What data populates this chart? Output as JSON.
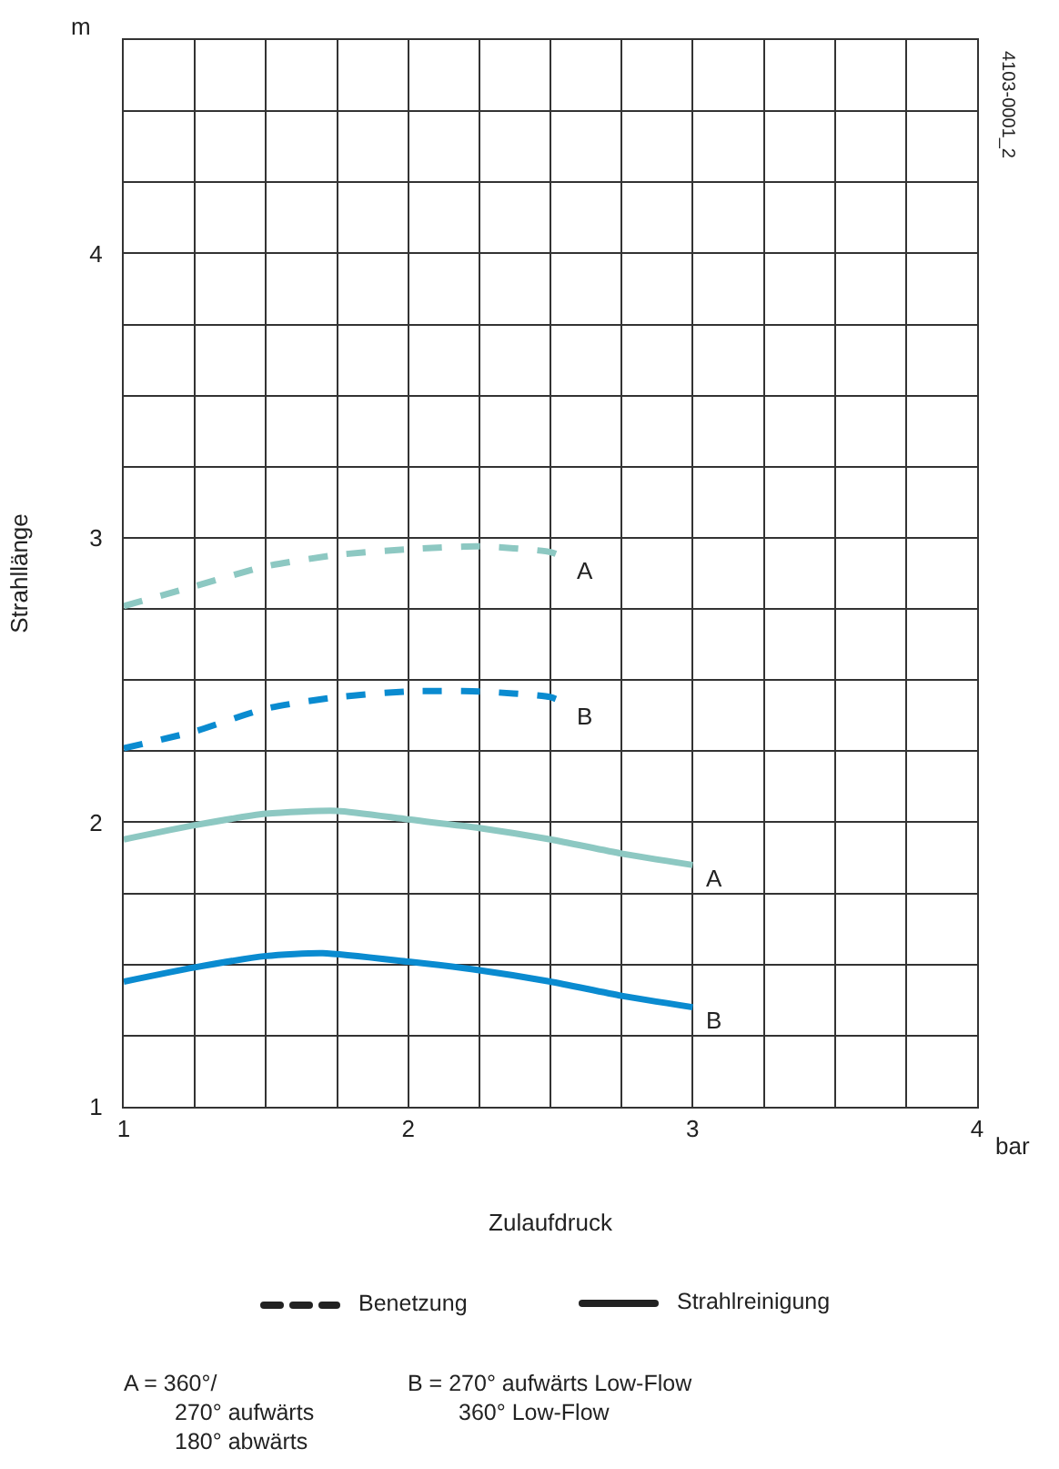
{
  "chart_data": {
    "type": "line",
    "xlabel": "Zulaufdruck",
    "ylabel": "Strahllänge",
    "xlim": [
      1,
      4
    ],
    "ylim": [
      1,
      4.75
    ],
    "xticks": [
      1,
      {
        "value": 1.25,
        "label": null
      },
      {
        "value": 1.5,
        "label": null
      },
      {
        "value": 1.75,
        "label": null
      },
      2,
      {
        "value": 2.25,
        "label": null
      },
      {
        "value": 2.5,
        "label": null
      },
      {
        "value": 2.75,
        "label": null
      },
      3,
      {
        "value": 3.25,
        "label": null
      },
      {
        "value": 3.5,
        "label": null
      },
      {
        "value": 3.75,
        "label": null
      },
      4
    ],
    "yticks": [
      1,
      {
        "value": 1.25,
        "label": null
      },
      {
        "value": 1.5,
        "label": null
      },
      {
        "value": 1.75,
        "label": null
      },
      2,
      {
        "value": 2.25,
        "label": null
      },
      {
        "value": 2.5,
        "label": null
      },
      {
        "value": 2.75,
        "label": null
      },
      3,
      {
        "value": 3.25,
        "label": null
      },
      {
        "value": 3.5,
        "label": null
      },
      {
        "value": 3.75,
        "label": null
      },
      4,
      {
        "value": 4.25,
        "label": null
      },
      {
        "value": 4.5,
        "label": null
      },
      {
        "value": 4.75,
        "label": null
      }
    ],
    "grid": true,
    "series": [
      {
        "name": "A",
        "color": "#8dc8c2",
        "line_style": "dashed",
        "x": [
          1,
          1.25,
          1.5,
          1.75,
          2,
          2.25,
          2.5,
          2.55
        ],
        "values": [
          2.76,
          2.83,
          2.9,
          2.94,
          2.96,
          2.97,
          2.95,
          2.93
        ]
      },
      {
        "name": "B",
        "color": "#0a8bd0",
        "line_style": "dashed",
        "x": [
          1,
          1.25,
          1.5,
          1.75,
          2,
          2.25,
          2.5,
          2.55
        ],
        "values": [
          2.26,
          2.32,
          2.4,
          2.44,
          2.46,
          2.46,
          2.44,
          2.42
        ]
      },
      {
        "name": "A",
        "color": "#8dc8c2",
        "line_style": "solid",
        "x": [
          1,
          1.25,
          1.5,
          1.75,
          2,
          2.25,
          2.5,
          2.75,
          3
        ],
        "values": [
          1.94,
          1.99,
          2.03,
          2.04,
          2.01,
          1.98,
          1.94,
          1.89,
          1.85
        ]
      },
      {
        "name": "B",
        "color": "#0a8bd0",
        "line_style": "solid",
        "x": [
          1,
          1.25,
          1.5,
          1.7,
          2,
          2.25,
          2.5,
          2.75,
          3
        ],
        "values": [
          1.44,
          1.49,
          1.53,
          1.54,
          1.51,
          1.48,
          1.44,
          1.39,
          1.35
        ]
      }
    ],
    "annotations": [
      "m",
      "bar",
      "4103-0001_2",
      "Benetzung",
      "Strahlreinigung",
      "A = 360°/\n270° aufwärts\n180° abwärts",
      "B = 270° aufwärts Low-Flow\n360° Low-Flow"
    ]
  }
}
